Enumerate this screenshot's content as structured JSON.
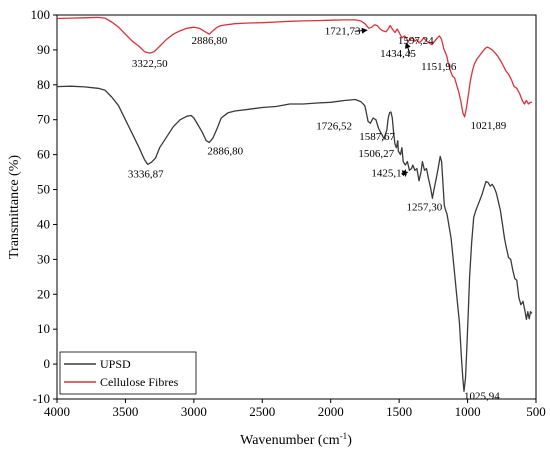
{
  "chart_data": {
    "type": "line",
    "xlabel": "Wavenumber (cm",
    "xlabel_sup": "-1",
    "xlabel_end": ")",
    "ylabel": "Transmittance (%)",
    "xlim": [
      4000,
      500
    ],
    "ylim": [
      -10,
      100
    ],
    "x_reversed": true,
    "xticks": [
      4000,
      3500,
      3000,
      2500,
      2000,
      1500,
      1000,
      500
    ],
    "yticks": [
      -10,
      0,
      10,
      20,
      30,
      40,
      50,
      60,
      70,
      80,
      90,
      100
    ],
    "legend_position": "bottom-left",
    "series": [
      {
        "name": "UPSD",
        "color": "#3a3a3a",
        "points": [
          [
            4000,
            79.5
          ],
          [
            3900,
            79.6
          ],
          [
            3800,
            79.4
          ],
          [
            3700,
            79.0
          ],
          [
            3650,
            78.5
          ],
          [
            3600,
            76.5
          ],
          [
            3550,
            74
          ],
          [
            3500,
            70
          ],
          [
            3450,
            66
          ],
          [
            3400,
            62
          ],
          [
            3360,
            58.5
          ],
          [
            3337,
            57.2
          ],
          [
            3310,
            57.8
          ],
          [
            3280,
            59
          ],
          [
            3250,
            62
          ],
          [
            3200,
            65
          ],
          [
            3150,
            68
          ],
          [
            3100,
            70
          ],
          [
            3050,
            71
          ],
          [
            3020,
            71.2
          ],
          [
            3000,
            70.5
          ],
          [
            2970,
            68.5
          ],
          [
            2940,
            66.5
          ],
          [
            2910,
            64
          ],
          [
            2887,
            63.5
          ],
          [
            2860,
            64.8
          ],
          [
            2830,
            67.5
          ],
          [
            2800,
            70.5
          ],
          [
            2750,
            72
          ],
          [
            2700,
            72.5
          ],
          [
            2600,
            73
          ],
          [
            2500,
            73.5
          ],
          [
            2400,
            73.8
          ],
          [
            2300,
            74.5
          ],
          [
            2200,
            74.5
          ],
          [
            2100,
            74.8
          ],
          [
            2000,
            75
          ],
          [
            1900,
            75.5
          ],
          [
            1820,
            75.8
          ],
          [
            1780,
            75.2
          ],
          [
            1750,
            74
          ],
          [
            1727,
            69.5
          ],
          [
            1710,
            69
          ],
          [
            1690,
            70.5
          ],
          [
            1670,
            70
          ],
          [
            1650,
            67.5
          ],
          [
            1630,
            66
          ],
          [
            1610,
            64.5
          ],
          [
            1590,
            67
          ],
          [
            1580,
            70.5
          ],
          [
            1570,
            72
          ],
          [
            1560,
            72.2
          ],
          [
            1550,
            70.5
          ],
          [
            1540,
            66
          ],
          [
            1530,
            63
          ],
          [
            1520,
            62
          ],
          [
            1510,
            64
          ],
          [
            1506,
            61
          ],
          [
            1490,
            60
          ],
          [
            1480,
            62
          ],
          [
            1470,
            58
          ],
          [
            1455,
            57
          ],
          [
            1440,
            58
          ],
          [
            1425,
            55.5
          ],
          [
            1410,
            56
          ],
          [
            1400,
            57
          ],
          [
            1385,
            55.5
          ],
          [
            1370,
            56
          ],
          [
            1355,
            52.5
          ],
          [
            1340,
            55
          ],
          [
            1330,
            58
          ],
          [
            1315,
            55.5
          ],
          [
            1300,
            56
          ],
          [
            1285,
            53
          ],
          [
            1270,
            50.5
          ],
          [
            1257,
            47.5
          ],
          [
            1245,
            50
          ],
          [
            1230,
            53
          ],
          [
            1215,
            56
          ],
          [
            1200,
            59.5
          ],
          [
            1190,
            58
          ],
          [
            1180,
            52
          ],
          [
            1170,
            45.5
          ],
          [
            1160,
            44
          ],
          [
            1150,
            43
          ],
          [
            1120,
            36
          ],
          [
            1100,
            28
          ],
          [
            1080,
            20
          ],
          [
            1060,
            12
          ],
          [
            1045,
            2
          ],
          [
            1035,
            -4
          ],
          [
            1026,
            -7.8
          ],
          [
            1015,
            -4
          ],
          [
            1005,
            5
          ],
          [
            995,
            15
          ],
          [
            985,
            25
          ],
          [
            970,
            35
          ],
          [
            955,
            42
          ],
          [
            940,
            44
          ],
          [
            925,
            45.5
          ],
          [
            910,
            47
          ],
          [
            895,
            48.5
          ],
          [
            880,
            50.5
          ],
          [
            865,
            52.3
          ],
          [
            850,
            52
          ],
          [
            835,
            51
          ],
          [
            820,
            51.5
          ],
          [
            805,
            50.5
          ],
          [
            790,
            49
          ],
          [
            775,
            46.5
          ],
          [
            760,
            44
          ],
          [
            745,
            40
          ],
          [
            730,
            36
          ],
          [
            715,
            33
          ],
          [
            700,
            30.5
          ],
          [
            685,
            30
          ],
          [
            670,
            27
          ],
          [
            655,
            24.5
          ],
          [
            640,
            24
          ],
          [
            625,
            19
          ],
          [
            610,
            17
          ],
          [
            595,
            18
          ],
          [
            580,
            15
          ],
          [
            570,
            12.8
          ],
          [
            560,
            15
          ],
          [
            550,
            13
          ],
          [
            540,
            15
          ],
          [
            530,
            14.5
          ]
        ]
      },
      {
        "name": "Cellulose Fibres",
        "color": "#d9333b",
        "points": [
          [
            4000,
            99
          ],
          [
            3900,
            99.1
          ],
          [
            3800,
            99.2
          ],
          [
            3700,
            99.3
          ],
          [
            3650,
            99.1
          ],
          [
            3600,
            98
          ],
          [
            3550,
            96.5
          ],
          [
            3500,
            94.5
          ],
          [
            3450,
            92.5
          ],
          [
            3400,
            91
          ],
          [
            3360,
            89.5
          ],
          [
            3323,
            89.1
          ],
          [
            3290,
            89.5
          ],
          [
            3250,
            91
          ],
          [
            3200,
            93
          ],
          [
            3150,
            94.5
          ],
          [
            3100,
            95.5
          ],
          [
            3050,
            96.2
          ],
          [
            3000,
            96.5
          ],
          [
            2960,
            96.2
          ],
          [
            2930,
            95.5
          ],
          [
            2900,
            94.8
          ],
          [
            2887,
            94.5
          ],
          [
            2860,
            95.5
          ],
          [
            2830,
            96.5
          ],
          [
            2800,
            97
          ],
          [
            2700,
            97.5
          ],
          [
            2600,
            97.7
          ],
          [
            2500,
            97.8
          ],
          [
            2400,
            98
          ],
          [
            2300,
            98.2
          ],
          [
            2200,
            98.3
          ],
          [
            2100,
            98.4
          ],
          [
            2000,
            98.5
          ],
          [
            1900,
            98.6
          ],
          [
            1820,
            98.6
          ],
          [
            1780,
            98.3
          ],
          [
            1750,
            97.5
          ],
          [
            1722,
            96.2
          ],
          [
            1700,
            96.5
          ],
          [
            1680,
            97.2
          ],
          [
            1660,
            97
          ],
          [
            1640,
            96
          ],
          [
            1620,
            95.5
          ],
          [
            1597,
            95.2
          ],
          [
            1580,
            96
          ],
          [
            1565,
            97
          ],
          [
            1550,
            96
          ],
          [
            1530,
            95
          ],
          [
            1515,
            96
          ],
          [
            1500,
            95
          ],
          [
            1480,
            93.5
          ],
          [
            1460,
            94
          ],
          [
            1434,
            92.5
          ],
          [
            1420,
            93
          ],
          [
            1400,
            93.5
          ],
          [
            1385,
            92.5
          ],
          [
            1370,
            93
          ],
          [
            1355,
            92
          ],
          [
            1340,
            92.5
          ],
          [
            1320,
            93.5
          ],
          [
            1300,
            92.5
          ],
          [
            1280,
            92
          ],
          [
            1260,
            91.5
          ],
          [
            1240,
            92.5
          ],
          [
            1220,
            93.5
          ],
          [
            1205,
            94
          ],
          [
            1190,
            93
          ],
          [
            1175,
            90.5
          ],
          [
            1160,
            89
          ],
          [
            1152,
            88.2
          ],
          [
            1140,
            86
          ],
          [
            1125,
            84
          ],
          [
            1110,
            82.5
          ],
          [
            1095,
            82
          ],
          [
            1080,
            80
          ],
          [
            1065,
            78
          ],
          [
            1050,
            75.5
          ],
          [
            1035,
            72
          ],
          [
            1022,
            70.8
          ],
          [
            1010,
            73
          ],
          [
            995,
            77
          ],
          [
            980,
            81
          ],
          [
            965,
            84
          ],
          [
            950,
            86
          ],
          [
            930,
            87.5
          ],
          [
            910,
            88.5
          ],
          [
            890,
            89.5
          ],
          [
            870,
            90.5
          ],
          [
            855,
            90.8
          ],
          [
            840,
            90.5
          ],
          [
            820,
            90
          ],
          [
            800,
            89.2
          ],
          [
            780,
            88.2
          ],
          [
            760,
            87
          ],
          [
            740,
            85.5
          ],
          [
            720,
            84
          ],
          [
            700,
            83
          ],
          [
            680,
            81.5
          ],
          [
            660,
            79.5
          ],
          [
            640,
            79
          ],
          [
            620,
            77.5
          ],
          [
            600,
            75.5
          ],
          [
            585,
            74.5
          ],
          [
            570,
            75.5
          ],
          [
            555,
            74.5
          ],
          [
            540,
            75
          ],
          [
            530,
            75
          ]
        ]
      }
    ],
    "annotations": [
      {
        "text": "3322,50",
        "x": 3322,
        "y": 89.1,
        "series": "Cellulose Fibres"
      },
      {
        "text": "2886,80",
        "x": 2887,
        "y": 94.5,
        "series": "Cellulose Fibres"
      },
      {
        "text": "1721,73",
        "x": 1722,
        "y": 96.2,
        "series": "Cellulose Fibres"
      },
      {
        "text": "1597,24",
        "x": 1597,
        "y": 95.2,
        "series": "Cellulose Fibres"
      },
      {
        "text": "1434,45",
        "x": 1434,
        "y": 92.5,
        "series": "Cellulose Fibres"
      },
      {
        "text": "1151,96",
        "x": 1152,
        "y": 88.2,
        "series": "Cellulose Fibres"
      },
      {
        "text": "1021,89",
        "x": 1022,
        "y": 70.8,
        "series": "Cellulose Fibres"
      },
      {
        "text": "3336,87",
        "x": 3337,
        "y": 57.2,
        "series": "UPSD"
      },
      {
        "text": "2886,80",
        "x": 2887,
        "y": 63.5,
        "series": "UPSD"
      },
      {
        "text": "1726,52",
        "x": 1727,
        "y": 69.5,
        "series": "UPSD"
      },
      {
        "text": "1587,67",
        "x": 1587,
        "y": 67,
        "series": "UPSD"
      },
      {
        "text": "1506,27",
        "x": 1506,
        "y": 61,
        "series": "UPSD"
      },
      {
        "text": "1425,14",
        "x": 1425,
        "y": 55.5,
        "series": "UPSD"
      },
      {
        "text": "1257,30",
        "x": 1257,
        "y": 47.5,
        "series": "UPSD"
      },
      {
        "text": "1025,94",
        "x": 1026,
        "y": -7.8,
        "series": "UPSD"
      }
    ]
  }
}
